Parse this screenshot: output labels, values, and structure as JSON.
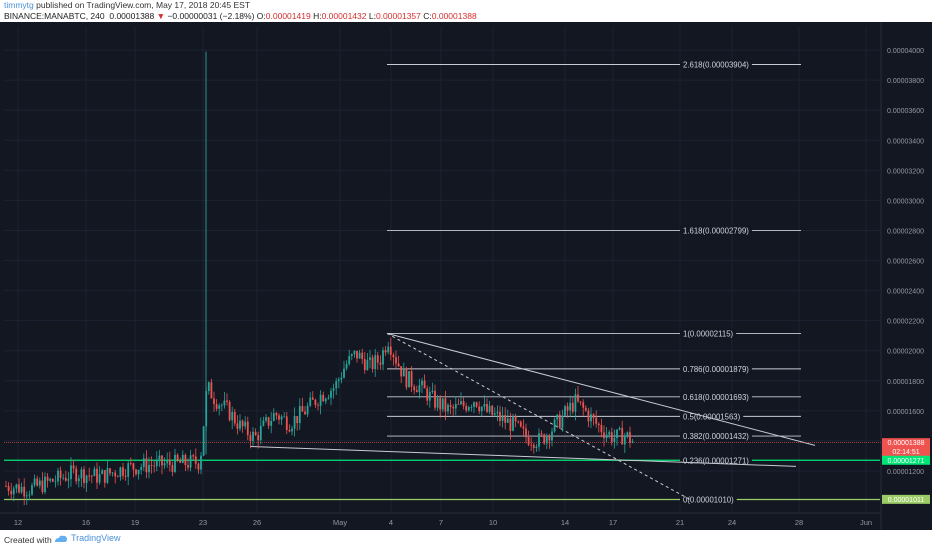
{
  "header": {
    "author": "timmytg",
    "published": "published on TradingView.com, May 17, 2018 20:45 EST",
    "symbol": "BINANCE:MANABTC, 240",
    "last_price": "0.00001388",
    "change": "−0.00000031 (−2.18%)",
    "ohlc_o_label": "O:",
    "ohlc_o": "0.00001419",
    "ohlc_h_label": "H:",
    "ohlc_h": "0.00001432",
    "ohlc_l_label": "L:",
    "ohlc_l": "0.00001357",
    "ohlc_c_label": "C:",
    "ohlc_c": "0.00001388"
  },
  "footer": {
    "created_with": "Created with",
    "brand": "TradingView"
  },
  "colors": {
    "background": "#131722",
    "up": "#26a69a",
    "down": "#ef5350",
    "price_tag": "#ef5350",
    "support": "#00e676",
    "fib_low": "#9ccc65"
  },
  "chart_data": {
    "type": "candlestick",
    "x_tick_labels": [
      "12",
      "16",
      "19",
      "23",
      "26",
      "May",
      "4",
      "7",
      "10",
      "14",
      "17",
      "21",
      "24",
      "28",
      "Jun"
    ],
    "y_tick_labels": [
      "0.00004000",
      "0.00003800",
      "0.00003600",
      "0.00003400",
      "0.00003200",
      "0.00003000",
      "0.00002800",
      "0.00002600",
      "0.00002400",
      "0.00002200",
      "0.00002000",
      "0.00001800",
      "0.00001600",
      "0.00001400",
      "0.00001200"
    ],
    "ylim": [
      9.8e-06,
      4.13e-05
    ],
    "fib_levels": [
      {
        "ratio": "2.618",
        "value": 3.904e-05,
        "label": "2.618(0.00003904)"
      },
      {
        "ratio": "1.618",
        "value": 2.799e-05,
        "label": "1.618(0.00002799)"
      },
      {
        "ratio": "1",
        "value": 2.115e-05,
        "label": "1(0.00002115)"
      },
      {
        "ratio": "0.786",
        "value": 1.879e-05,
        "label": "0.786(0.00001879)"
      },
      {
        "ratio": "0.618",
        "value": 1.693e-05,
        "label": "0.618(0.00001693)"
      },
      {
        "ratio": "0.5",
        "value": 1.563e-05,
        "label": "0.5(0.00001563)"
      },
      {
        "ratio": "0.382",
        "value": 1.432e-05,
        "label": "0.382(0.00001432)"
      },
      {
        "ratio": "0.236",
        "value": 1.271e-05,
        "label": "0.236(0.00001271)"
      },
      {
        "ratio": "0",
        "value": 1.01e-05,
        "label": "0(0.00001010)"
      }
    ],
    "price_tags": [
      {
        "value": 1.388e-05,
        "label": "0.00001388",
        "sub": "02:14:51",
        "color": "#ef5350"
      },
      {
        "value": 1.271e-05,
        "label": "0.00001271",
        "color": "#00e676"
      },
      {
        "value": 1.011e-05,
        "label": "0.00001011",
        "color": "#9ccc65"
      }
    ]
  }
}
